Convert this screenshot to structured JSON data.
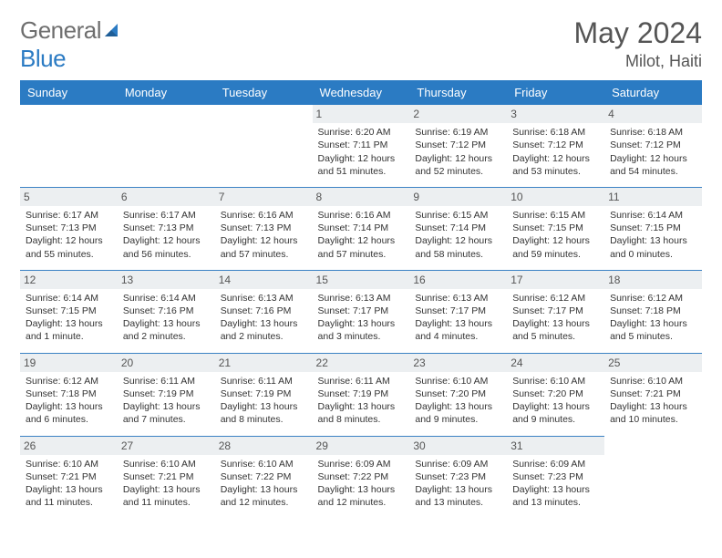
{
  "brand": {
    "part1": "General",
    "part2": "Blue"
  },
  "title": "May 2024",
  "location": "Milot, Haiti",
  "colors": {
    "header_bg": "#2b7bc3",
    "daynum_bg": "#eceff1",
    "text": "#333333",
    "muted": "#555555"
  },
  "weekdays": [
    "Sunday",
    "Monday",
    "Tuesday",
    "Wednesday",
    "Thursday",
    "Friday",
    "Saturday"
  ],
  "weeks": [
    [
      null,
      null,
      null,
      {
        "n": "1",
        "sr": "Sunrise: 6:20 AM",
        "ss": "Sunset: 7:11 PM",
        "dl1": "Daylight: 12 hours",
        "dl2": "and 51 minutes."
      },
      {
        "n": "2",
        "sr": "Sunrise: 6:19 AM",
        "ss": "Sunset: 7:12 PM",
        "dl1": "Daylight: 12 hours",
        "dl2": "and 52 minutes."
      },
      {
        "n": "3",
        "sr": "Sunrise: 6:18 AM",
        "ss": "Sunset: 7:12 PM",
        "dl1": "Daylight: 12 hours",
        "dl2": "and 53 minutes."
      },
      {
        "n": "4",
        "sr": "Sunrise: 6:18 AM",
        "ss": "Sunset: 7:12 PM",
        "dl1": "Daylight: 12 hours",
        "dl2": "and 54 minutes."
      }
    ],
    [
      {
        "n": "5",
        "sr": "Sunrise: 6:17 AM",
        "ss": "Sunset: 7:13 PM",
        "dl1": "Daylight: 12 hours",
        "dl2": "and 55 minutes."
      },
      {
        "n": "6",
        "sr": "Sunrise: 6:17 AM",
        "ss": "Sunset: 7:13 PM",
        "dl1": "Daylight: 12 hours",
        "dl2": "and 56 minutes."
      },
      {
        "n": "7",
        "sr": "Sunrise: 6:16 AM",
        "ss": "Sunset: 7:13 PM",
        "dl1": "Daylight: 12 hours",
        "dl2": "and 57 minutes."
      },
      {
        "n": "8",
        "sr": "Sunrise: 6:16 AM",
        "ss": "Sunset: 7:14 PM",
        "dl1": "Daylight: 12 hours",
        "dl2": "and 57 minutes."
      },
      {
        "n": "9",
        "sr": "Sunrise: 6:15 AM",
        "ss": "Sunset: 7:14 PM",
        "dl1": "Daylight: 12 hours",
        "dl2": "and 58 minutes."
      },
      {
        "n": "10",
        "sr": "Sunrise: 6:15 AM",
        "ss": "Sunset: 7:15 PM",
        "dl1": "Daylight: 12 hours",
        "dl2": "and 59 minutes."
      },
      {
        "n": "11",
        "sr": "Sunrise: 6:14 AM",
        "ss": "Sunset: 7:15 PM",
        "dl1": "Daylight: 13 hours",
        "dl2": "and 0 minutes."
      }
    ],
    [
      {
        "n": "12",
        "sr": "Sunrise: 6:14 AM",
        "ss": "Sunset: 7:15 PM",
        "dl1": "Daylight: 13 hours",
        "dl2": "and 1 minute."
      },
      {
        "n": "13",
        "sr": "Sunrise: 6:14 AM",
        "ss": "Sunset: 7:16 PM",
        "dl1": "Daylight: 13 hours",
        "dl2": "and 2 minutes."
      },
      {
        "n": "14",
        "sr": "Sunrise: 6:13 AM",
        "ss": "Sunset: 7:16 PM",
        "dl1": "Daylight: 13 hours",
        "dl2": "and 2 minutes."
      },
      {
        "n": "15",
        "sr": "Sunrise: 6:13 AM",
        "ss": "Sunset: 7:17 PM",
        "dl1": "Daylight: 13 hours",
        "dl2": "and 3 minutes."
      },
      {
        "n": "16",
        "sr": "Sunrise: 6:13 AM",
        "ss": "Sunset: 7:17 PM",
        "dl1": "Daylight: 13 hours",
        "dl2": "and 4 minutes."
      },
      {
        "n": "17",
        "sr": "Sunrise: 6:12 AM",
        "ss": "Sunset: 7:17 PM",
        "dl1": "Daylight: 13 hours",
        "dl2": "and 5 minutes."
      },
      {
        "n": "18",
        "sr": "Sunrise: 6:12 AM",
        "ss": "Sunset: 7:18 PM",
        "dl1": "Daylight: 13 hours",
        "dl2": "and 5 minutes."
      }
    ],
    [
      {
        "n": "19",
        "sr": "Sunrise: 6:12 AM",
        "ss": "Sunset: 7:18 PM",
        "dl1": "Daylight: 13 hours",
        "dl2": "and 6 minutes."
      },
      {
        "n": "20",
        "sr": "Sunrise: 6:11 AM",
        "ss": "Sunset: 7:19 PM",
        "dl1": "Daylight: 13 hours",
        "dl2": "and 7 minutes."
      },
      {
        "n": "21",
        "sr": "Sunrise: 6:11 AM",
        "ss": "Sunset: 7:19 PM",
        "dl1": "Daylight: 13 hours",
        "dl2": "and 8 minutes."
      },
      {
        "n": "22",
        "sr": "Sunrise: 6:11 AM",
        "ss": "Sunset: 7:19 PM",
        "dl1": "Daylight: 13 hours",
        "dl2": "and 8 minutes."
      },
      {
        "n": "23",
        "sr": "Sunrise: 6:10 AM",
        "ss": "Sunset: 7:20 PM",
        "dl1": "Daylight: 13 hours",
        "dl2": "and 9 minutes."
      },
      {
        "n": "24",
        "sr": "Sunrise: 6:10 AM",
        "ss": "Sunset: 7:20 PM",
        "dl1": "Daylight: 13 hours",
        "dl2": "and 9 minutes."
      },
      {
        "n": "25",
        "sr": "Sunrise: 6:10 AM",
        "ss": "Sunset: 7:21 PM",
        "dl1": "Daylight: 13 hours",
        "dl2": "and 10 minutes."
      }
    ],
    [
      {
        "n": "26",
        "sr": "Sunrise: 6:10 AM",
        "ss": "Sunset: 7:21 PM",
        "dl1": "Daylight: 13 hours",
        "dl2": "and 11 minutes."
      },
      {
        "n": "27",
        "sr": "Sunrise: 6:10 AM",
        "ss": "Sunset: 7:21 PM",
        "dl1": "Daylight: 13 hours",
        "dl2": "and 11 minutes."
      },
      {
        "n": "28",
        "sr": "Sunrise: 6:10 AM",
        "ss": "Sunset: 7:22 PM",
        "dl1": "Daylight: 13 hours",
        "dl2": "and 12 minutes."
      },
      {
        "n": "29",
        "sr": "Sunrise: 6:09 AM",
        "ss": "Sunset: 7:22 PM",
        "dl1": "Daylight: 13 hours",
        "dl2": "and 12 minutes."
      },
      {
        "n": "30",
        "sr": "Sunrise: 6:09 AM",
        "ss": "Sunset: 7:23 PM",
        "dl1": "Daylight: 13 hours",
        "dl2": "and 13 minutes."
      },
      {
        "n": "31",
        "sr": "Sunrise: 6:09 AM",
        "ss": "Sunset: 7:23 PM",
        "dl1": "Daylight: 13 hours",
        "dl2": "and 13 minutes."
      },
      null
    ]
  ]
}
